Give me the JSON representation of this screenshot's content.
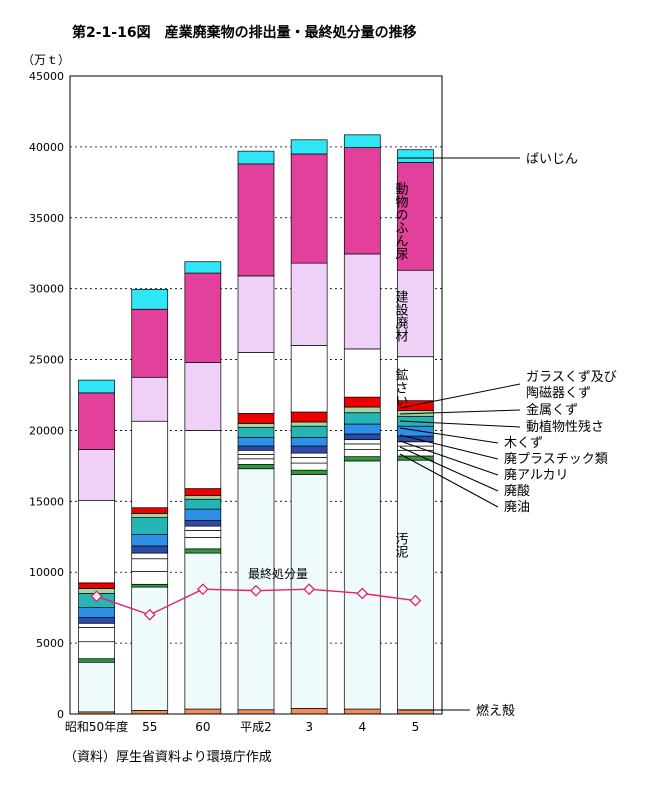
{
  "page": {
    "title": "第2-1-16図　産業廃棄物の排出量・最終処分量の推移",
    "source": "（資料）厚生省資料より環境庁作成"
  },
  "chart_data": {
    "type": "bar",
    "stacked": true,
    "title": "第2-1-16図　産業廃棄物の排出量・最終処分量の推移",
    "ylabel": "（万ｔ）",
    "ylim": [
      0,
      45000
    ],
    "yticks": [
      0,
      5000,
      10000,
      15000,
      20000,
      25000,
      30000,
      35000,
      40000,
      45000
    ],
    "grid": true,
    "categories": [
      "昭和50年度",
      "55",
      "60",
      "平成2",
      "3",
      "4",
      "5"
    ],
    "series": [
      {
        "name": "燃え殻",
        "color": "#f28c5c",
        "values": [
          150,
          250,
          350,
          300,
          400,
          350,
          300
        ]
      },
      {
        "name": "汚泥",
        "color": "#eefafb",
        "values": [
          3500,
          8700,
          11000,
          17000,
          16500,
          17500,
          17600
        ]
      },
      {
        "name": "廃油",
        "color": "#2e9a3c",
        "values": [
          250,
          200,
          300,
          300,
          300,
          300,
          300
        ]
      },
      {
        "name": "廃酸",
        "color": "#ffffff",
        "values": [
          1200,
          900,
          800,
          400,
          500,
          500,
          400
        ]
      },
      {
        "name": "廃アルカリ",
        "color": "#ffffff",
        "values": [
          1000,
          900,
          500,
          300,
          400,
          400,
          300
        ]
      },
      {
        "name": "廃プラスチック類",
        "color": "#ffffff",
        "values": [
          300,
          400,
          300,
          300,
          300,
          300,
          300
        ]
      },
      {
        "name": "木くず",
        "color": "#2c4aa8",
        "values": [
          400,
          500,
          400,
          300,
          500,
          400,
          400
        ]
      },
      {
        "name": "動植物性残さ",
        "color": "#2d8fe6",
        "values": [
          700,
          800,
          800,
          600,
          600,
          700,
          700
        ]
      },
      {
        "name": "金属くず",
        "color": "#26b4b4",
        "values": [
          1000,
          1200,
          700,
          700,
          800,
          800,
          700
        ]
      },
      {
        "name": "ガラスくず及び陶磁器くず",
        "color": "#9fd8a0",
        "values": [
          350,
          300,
          250,
          300,
          300,
          400,
          400
        ]
      },
      {
        "name": "鉱さい",
        "color": "#ee0000",
        "values": [
          400,
          400,
          500,
          700,
          700,
          700,
          700
        ]
      },
      {
        "name": "建設廃材",
        "color": "#ffffff",
        "values": [
          5800,
          6100,
          4100,
          4300,
          4700,
          3400,
          3100
        ]
      },
      {
        "name": "動物のふん尿",
        "color": "#efd0f7",
        "values": [
          3600,
          3100,
          4800,
          5400,
          5800,
          6700,
          6100
        ]
      },
      {
        "name": "ばいじん",
        "color": "#e2409a",
        "values": [
          4000,
          4800,
          6300,
          7900,
          7700,
          7500,
          7600
        ]
      },
      {
        "name": "",
        "color": "#2ee6f6",
        "values": [
          900,
          1400,
          800,
          900,
          1000,
          900,
          900
        ]
      }
    ],
    "line": {
      "name": "最終処分量",
      "color": "#e8206a",
      "values": [
        8300,
        7000,
        8800,
        8700,
        8800,
        8500,
        8000
      ]
    },
    "annotations": {
      "bainjin": "ばいじん",
      "glass1": "ガラスくず及び",
      "glass2": "陶磁器くず",
      "metal": "金属くず",
      "plant": "動植物性残さ",
      "wood": "木くず",
      "plastic": "廃プラスチック類",
      "alkali": "廃アルカリ",
      "acid": "廃酸",
      "oil": "廃油",
      "ash": "燃え殻"
    },
    "inbar_labels": {
      "manure": "動物のふん尿",
      "construction": "建設廃材",
      "slag": "鉱さい",
      "sludge": "汚泥"
    }
  }
}
